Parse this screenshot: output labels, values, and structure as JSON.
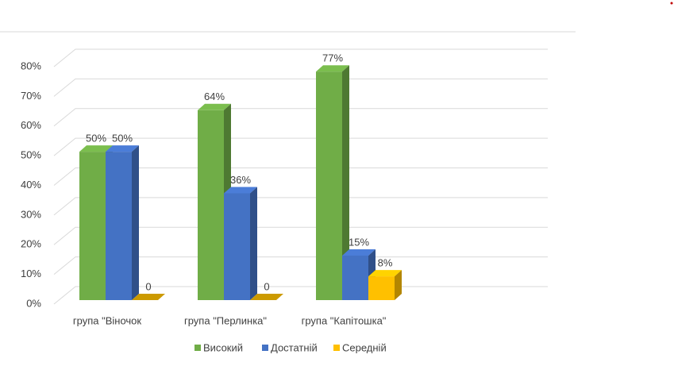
{
  "chart_data": {
    "type": "bar3d",
    "categories": [
      "група \"Віночок",
      "група \"Перлинка\"",
      "група \"Капітошка\""
    ],
    "series": [
      {
        "name": "Високий",
        "color": "#70ad47",
        "values": [
          50,
          64,
          77
        ],
        "value_labels": [
          "50%",
          "64%",
          "77%"
        ]
      },
      {
        "name": "Достатній",
        "color": "#4472c4",
        "values": [
          50,
          36,
          15
        ],
        "value_labels": [
          "50%",
          "36%",
          "15%"
        ]
      },
      {
        "name": "Середній",
        "color": "#ffc000",
        "values": [
          0,
          0,
          8
        ],
        "value_labels": [
          "0",
          "0",
          "8%"
        ]
      }
    ],
    "ylim": [
      0,
      80
    ],
    "yticks": [
      {
        "value": 0,
        "label": "0%"
      },
      {
        "value": 10,
        "label": "10%"
      },
      {
        "value": 20,
        "label": "20%"
      },
      {
        "value": 30,
        "label": "30%"
      },
      {
        "value": 40,
        "label": "40%"
      },
      {
        "value": 50,
        "label": "50%"
      },
      {
        "value": 60,
        "label": "60%"
      },
      {
        "value": 70,
        "label": "70%"
      },
      {
        "value": 80,
        "label": "80%"
      }
    ],
    "grid": true,
    "legend": "bottom"
  }
}
